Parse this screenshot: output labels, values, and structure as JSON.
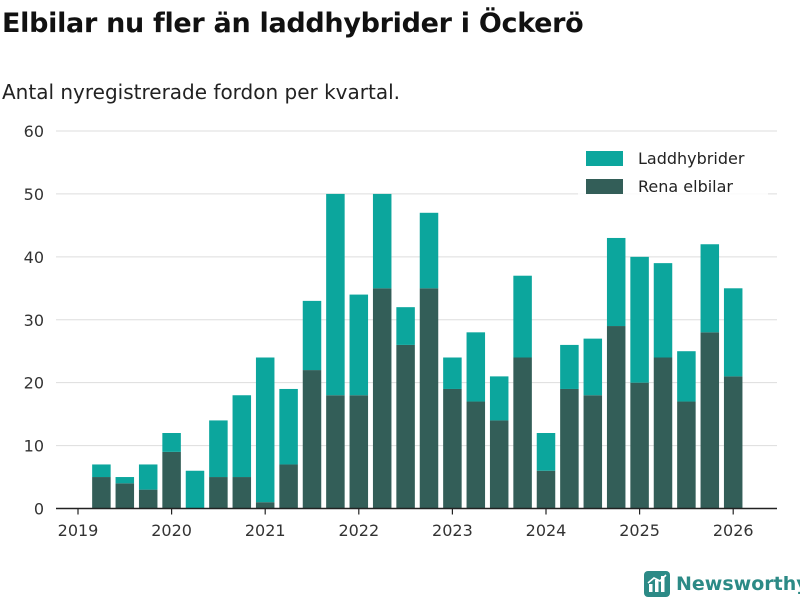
{
  "title": "Elbilar nu fler än laddhybrider i Öckerö",
  "subtitle": "Antal nyregistrerade fordon per kvartal.",
  "brand": {
    "name": "Newsworthy",
    "icon": "newsworthy-logo-icon"
  },
  "colors": {
    "hybrid": "#0ca69d",
    "electric": "#335e58",
    "grid": "#dddddd",
    "axis": "#222222",
    "brand": "#2c8a86"
  },
  "chart_data": {
    "type": "bar",
    "stacked": true,
    "x": [
      "2019Q2",
      "2019Q3",
      "2019Q4",
      "2020Q1",
      "2020Q2",
      "2020Q3",
      "2020Q4",
      "2021Q1",
      "2021Q2",
      "2021Q3",
      "2021Q4",
      "2022Q1",
      "2022Q2",
      "2022Q3",
      "2022Q4",
      "2023Q1",
      "2023Q2",
      "2023Q3",
      "2023Q4",
      "2024Q1",
      "2024Q2",
      "2024Q3",
      "2024Q4",
      "2025Q1",
      "2025Q2",
      "2025Q3",
      "2025Q4",
      "2026Q1"
    ],
    "series": [
      {
        "name": "Rena elbilar",
        "values": [
          5,
          4,
          3,
          9,
          0,
          5,
          5,
          1,
          7,
          22,
          18,
          18,
          35,
          26,
          35,
          19,
          17,
          14,
          24,
          6,
          19,
          18,
          29,
          20,
          24,
          17,
          28,
          21
        ]
      },
      {
        "name": "Laddhybrider",
        "values": [
          2,
          1,
          4,
          3,
          6,
          9,
          13,
          23,
          12,
          11,
          32,
          16,
          15,
          6,
          12,
          5,
          11,
          7,
          13,
          6,
          7,
          9,
          14,
          20,
          15,
          8,
          14,
          14
        ]
      }
    ],
    "x_ticks": [
      "2019",
      "2020",
      "2021",
      "2022",
      "2023",
      "2024",
      "2025",
      "2026"
    ],
    "y_ticks": [
      0,
      10,
      20,
      30,
      40,
      50,
      60
    ],
    "ylim": [
      0,
      60
    ],
    "xlabel": "",
    "ylabel": "",
    "grid": true,
    "legend": {
      "position": "top-right",
      "order": [
        "Laddhybrider",
        "Rena elbilar"
      ]
    }
  }
}
